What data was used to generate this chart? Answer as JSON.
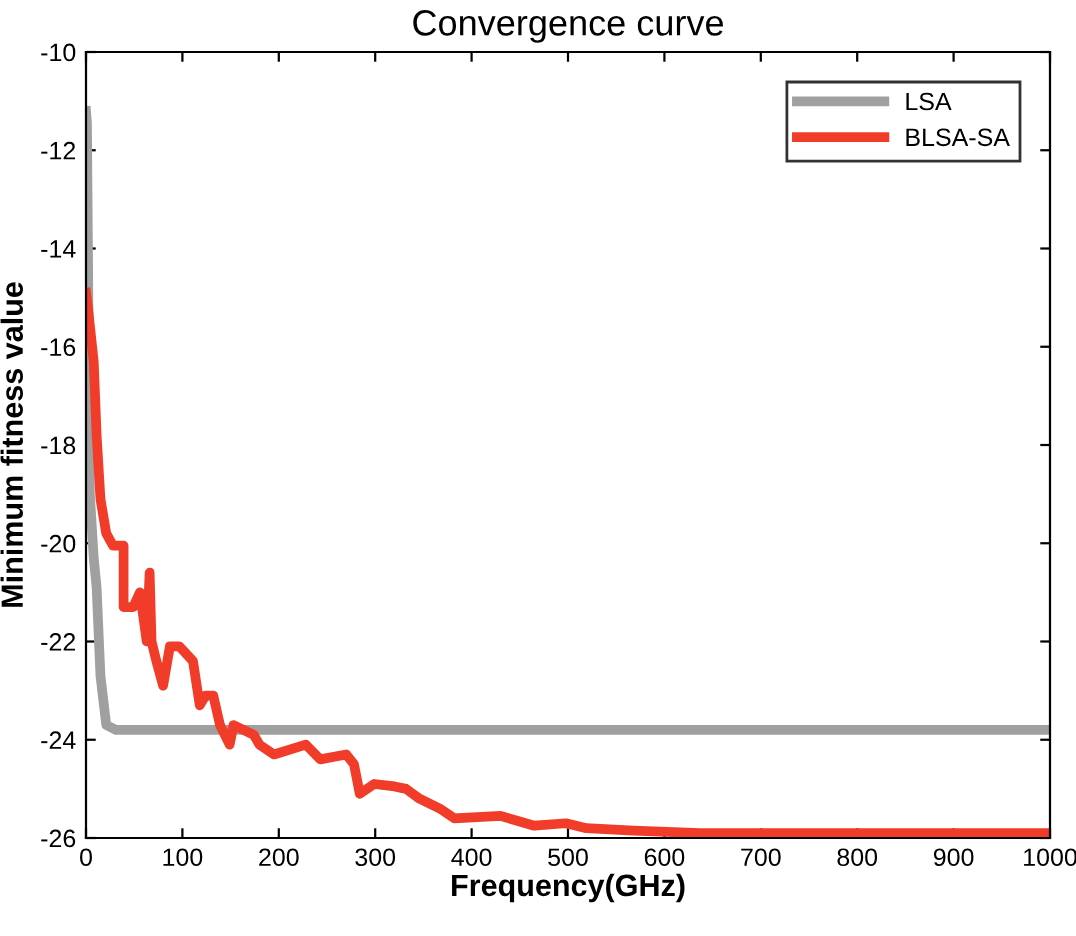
{
  "chart_data": {
    "type": "line",
    "title": "Convergence curve",
    "xlabel": "Frequency(GHz)",
    "ylabel": "Minimum fitness value",
    "xlim": [
      0,
      1000
    ],
    "ylim": [
      -26,
      -10
    ],
    "xticks": [
      0,
      100,
      200,
      300,
      400,
      500,
      600,
      700,
      800,
      900,
      1000
    ],
    "yticks": [
      -26,
      -24,
      -22,
      -20,
      -18,
      -16,
      -14,
      -12,
      -10
    ],
    "grid": false,
    "legend": "top right",
    "line_style": "solid",
    "marker": "none",
    "series": [
      {
        "name": "LSA",
        "color": "#a0a0a0",
        "x": [
          0,
          1,
          4,
          8,
          11,
          15,
          21,
          31,
          1000
        ],
        "values": [
          -11.2,
          -11.45,
          -19.0,
          -20.3,
          -20.9,
          -22.7,
          -23.7,
          -23.8,
          -23.8
        ]
      },
      {
        "name": "BLSA-SA",
        "color": "#f03c28",
        "x": [
          0,
          2,
          8,
          11,
          15,
          21,
          28,
          39,
          39,
          49,
          56,
          63,
          66,
          68,
          73,
          80,
          87,
          97,
          111,
          118,
          124,
          132,
          139,
          149,
          153,
          174,
          180,
          195,
          228,
          243,
          270,
          278,
          284,
          299,
          320,
          332,
          346,
          367,
          382,
          430,
          465,
          498,
          519,
          568,
          637,
          1000
        ],
        "values": [
          -14.9,
          -15.2,
          -16.3,
          -17.8,
          -19.1,
          -19.8,
          -20.05,
          -20.05,
          -21.3,
          -21.3,
          -21.0,
          -22.0,
          -20.6,
          -22.0,
          -22.4,
          -22.9,
          -22.1,
          -22.1,
          -22.4,
          -23.3,
          -23.1,
          -23.1,
          -23.7,
          -24.1,
          -23.7,
          -23.9,
          -24.1,
          -24.3,
          -24.1,
          -24.4,
          -24.3,
          -24.5,
          -25.1,
          -24.9,
          -24.95,
          -25.0,
          -25.2,
          -25.4,
          -25.6,
          -25.55,
          -25.75,
          -25.7,
          -25.8,
          -25.85,
          -25.9,
          -25.9
        ]
      }
    ]
  }
}
